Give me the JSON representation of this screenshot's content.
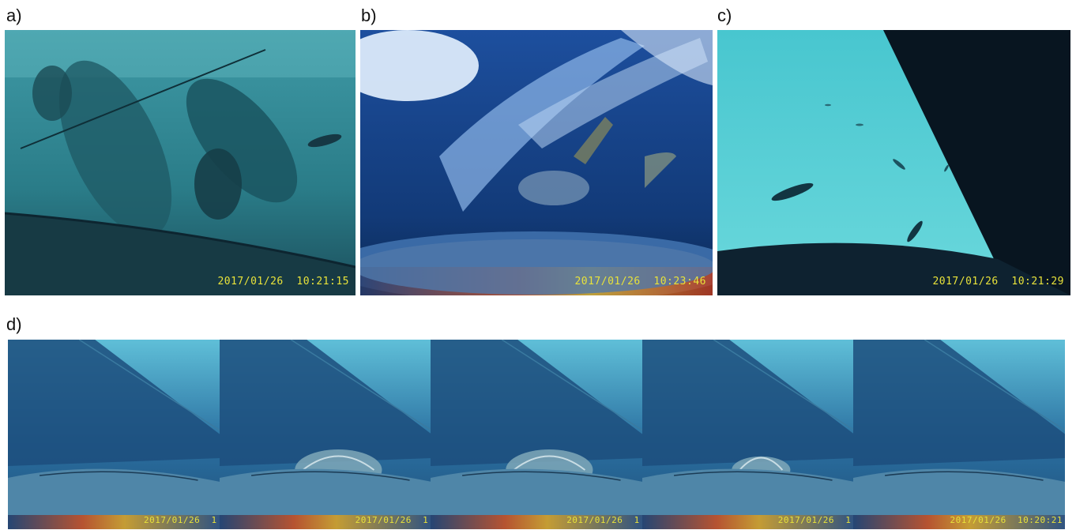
{
  "panels": {
    "a": {
      "label": "a)",
      "timestamp": "2017/01/26  10:21:15"
    },
    "b": {
      "label": "b)",
      "timestamp": "2017/01/26  10:23:46"
    },
    "c": {
      "label": "c)",
      "timestamp": "2017/01/26  10:21:29"
    },
    "d": {
      "label": "d)",
      "frames": [
        {
          "timestamp": "2017/01/26  1"
        },
        {
          "timestamp": "2017/01/26  1"
        },
        {
          "timestamp": "2017/01/26  1"
        },
        {
          "timestamp": "2017/01/26  1"
        },
        {
          "timestamp": "2017/01/26  10:20:21"
        }
      ]
    }
  },
  "colors": {
    "timestamp": "#e8e23a",
    "water_light": "#5fc7d6",
    "water_dark": "#0d3b66",
    "hull_dark": "#0a1a26"
  }
}
